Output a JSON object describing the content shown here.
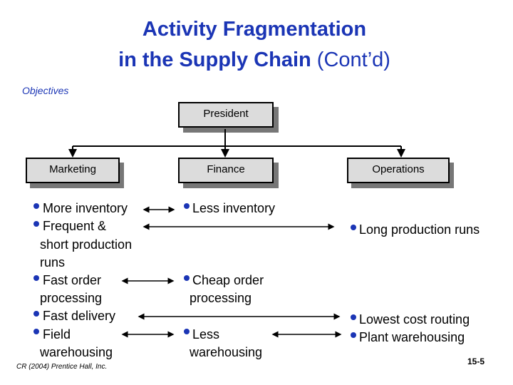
{
  "title": {
    "line1": "Activity Fragmentation",
    "line2_bold": "in the Supply Chain",
    "line2_normal": " (Cont’d)"
  },
  "objectives_label": "Objectives",
  "org": {
    "president": "President",
    "marketing": "Marketing",
    "finance": "Finance",
    "operations": "Operations"
  },
  "marketing": [
    "More inventory",
    "Frequent &",
    "short production",
    "runs",
    "Fast order",
    "processing",
    "Fast delivery",
    "Field",
    "warehousing"
  ],
  "finance": [
    "Less inventory",
    "Cheap order",
    "processing",
    "Less",
    "warehousing"
  ],
  "operations": [
    "Long production runs",
    "Lowest cost routing",
    "Plant warehousing"
  ],
  "footer": {
    "copyright": "CR (2004) Prentice Hall, Inc.",
    "page": "15-5"
  },
  "colors": {
    "accent": "#1b35b5",
    "box": "#dcdcdc",
    "shadow": "#777777"
  }
}
